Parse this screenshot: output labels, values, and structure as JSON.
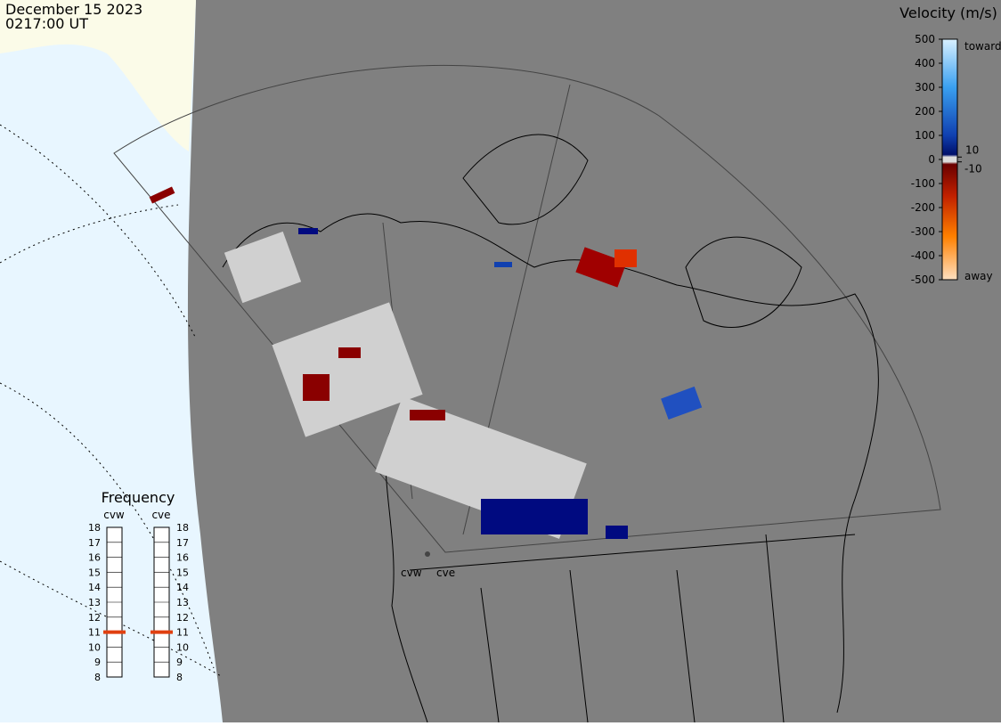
{
  "header": {
    "date": "December 15 2023",
    "time": "0217:00 UT"
  },
  "velocity_scale": {
    "title": "Velocity (m/s)",
    "ticks": [
      500,
      400,
      300,
      200,
      100,
      0,
      -100,
      -200,
      -300,
      -400,
      -500
    ],
    "inner_ticks": [
      10,
      -10
    ],
    "toward": "toward",
    "away": "away"
  },
  "frequency": {
    "title": "Frequency",
    "radars": [
      {
        "name": "cvw",
        "value": 11
      },
      {
        "name": "cve",
        "value": 11
      }
    ],
    "ticks": [
      8,
      9,
      10,
      11,
      12,
      13,
      14,
      15,
      16,
      17,
      18
    ]
  },
  "map": {
    "radar_labels": [
      "cvw",
      "cve"
    ]
  }
}
